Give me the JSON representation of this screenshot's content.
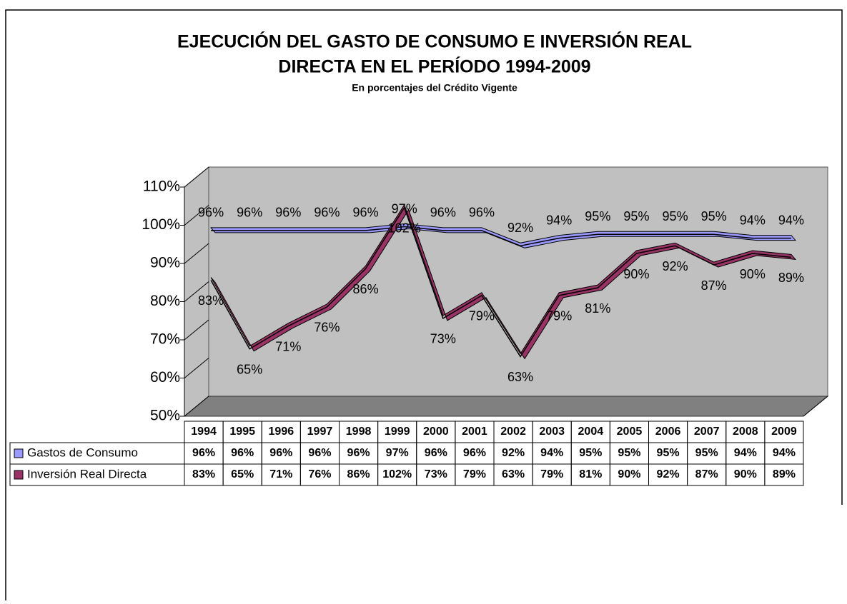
{
  "chart_data": {
    "type": "line",
    "title": "EJECUCIÓN DEL GASTO DE CONSUMO E INVERSIÓN REAL",
    "title_line2": "DIRECTA EN EL PERÍODO 1994-2009",
    "subtitle": "En porcentajes del Crédito Vigente",
    "categories": [
      "1994",
      "1995",
      "1996",
      "1997",
      "1998",
      "1999",
      "2000",
      "2001",
      "2002",
      "2003",
      "2004",
      "2005",
      "2006",
      "2007",
      "2008",
      "2009"
    ],
    "series": [
      {
        "name": "Gastos de Consumo",
        "color": "#9999ff",
        "values": [
          96,
          96,
          96,
          96,
          96,
          97,
          96,
          96,
          92,
          94,
          95,
          95,
          95,
          95,
          94,
          94
        ],
        "value_labels": [
          "96%",
          "96%",
          "96%",
          "96%",
          "96%",
          "97%",
          "96%",
          "96%",
          "92%",
          "94%",
          "95%",
          "95%",
          "95%",
          "95%",
          "94%",
          "94%"
        ]
      },
      {
        "name": "Inversión Real Directa",
        "color": "#993366",
        "values": [
          83,
          65,
          71,
          76,
          86,
          102,
          73,
          79,
          63,
          79,
          81,
          90,
          92,
          87,
          90,
          89
        ],
        "value_labels": [
          "83%",
          "65%",
          "71%",
          "76%",
          "86%",
          "102%",
          "73%",
          "79%",
          "63%",
          "79%",
          "81%",
          "90%",
          "92%",
          "87%",
          "90%",
          "89%"
        ]
      }
    ],
    "ylim": [
      50,
      110
    ],
    "yticks": [
      {
        "value": 50,
        "label": "50%"
      },
      {
        "value": 60,
        "label": "60%"
      },
      {
        "value": 70,
        "label": "70%"
      },
      {
        "value": 80,
        "label": "80%"
      },
      {
        "value": 90,
        "label": "90%"
      },
      {
        "value": 100,
        "label": "100%"
      },
      {
        "value": 110,
        "label": "110%"
      }
    ],
    "data_table": true
  }
}
